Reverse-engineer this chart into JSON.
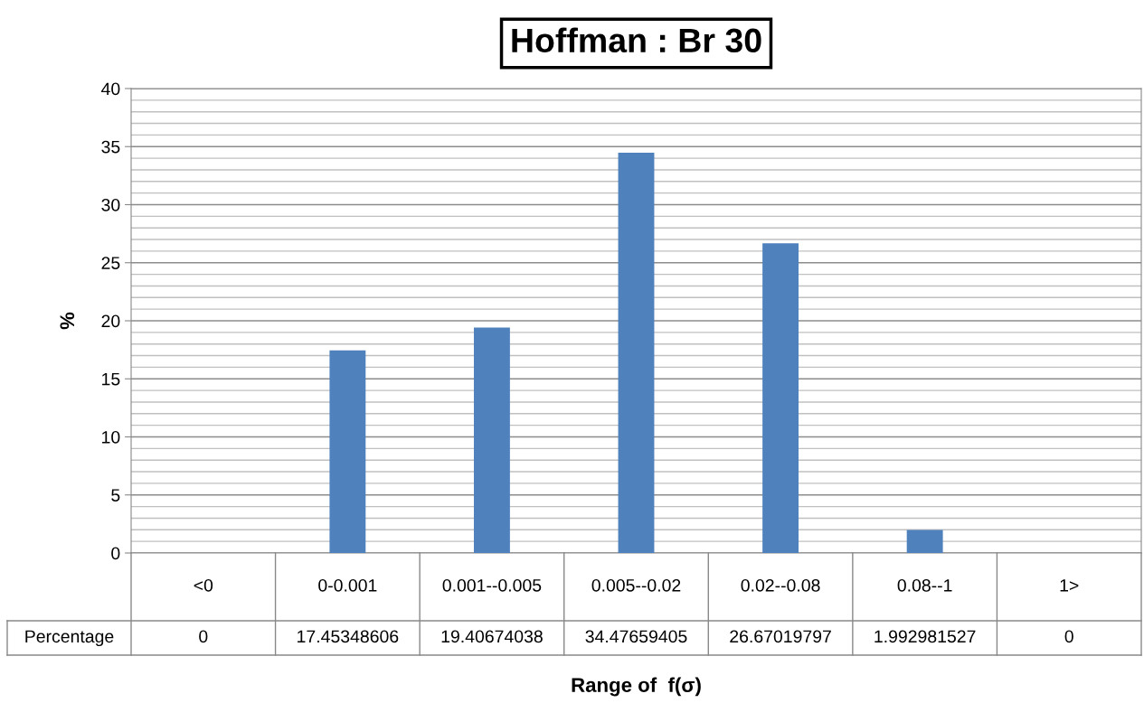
{
  "chart_data": {
    "type": "bar",
    "title": "Hoffman : Br 30",
    "xlabel": "Range of  f(σ)",
    "ylabel": "%",
    "categories": [
      "<0",
      "0-0.001",
      "0.001--0.005",
      "0.005--0.02",
      "0.02--0.08",
      "0.08--1",
      "1>"
    ],
    "series": [
      {
        "name": "Percentage",
        "color": "#4f81bd",
        "values": [
          0,
          17.45348606,
          19.40674038,
          34.47659405,
          26.67019797,
          1.992981527,
          0
        ]
      }
    ],
    "ylim": [
      0,
      40
    ],
    "yticks": [
      0,
      5,
      10,
      15,
      20,
      25,
      30,
      35,
      40
    ],
    "grid": "y",
    "data_labels": true,
    "legend": false
  }
}
